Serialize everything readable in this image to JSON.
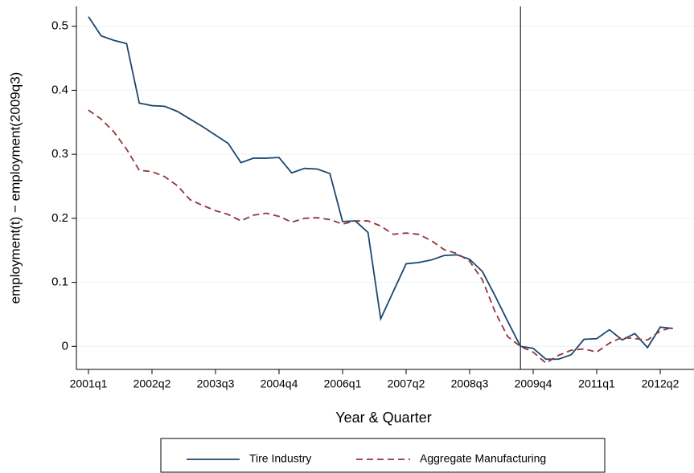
{
  "chart_data": {
    "type": "line",
    "x_label": "Year & Quarter",
    "y_label": "employment(t) − employment(2009q3)",
    "categories": [
      "2001q1",
      null,
      null,
      null,
      null,
      "2002q2",
      null,
      null,
      null,
      null,
      "2003q3",
      null,
      null,
      null,
      null,
      "2004q4",
      null,
      null,
      null,
      null,
      "2006q1",
      null,
      null,
      null,
      null,
      "2007q2",
      null,
      null,
      null,
      null,
      "2008q3",
      null,
      null,
      null,
      null,
      "2009q4",
      null,
      null,
      null,
      null,
      "2011q1",
      null,
      null,
      null,
      null,
      "2012q2",
      null
    ],
    "series": [
      {
        "name": "Tire Industry",
        "color": "#1a476f",
        "dash": "solid",
        "values": [
          0.515,
          0.485,
          0.478,
          0.473,
          0.38,
          0.376,
          0.375,
          0.367,
          0.355,
          0.343,
          0.33,
          0.317,
          0.287,
          0.294,
          0.294,
          0.295,
          0.271,
          0.278,
          0.277,
          0.27,
          0.195,
          0.196,
          0.178,
          0.043,
          0.086,
          0.129,
          0.131,
          0.135,
          0.142,
          0.143,
          0.136,
          0.117,
          0.079,
          0.039,
          0.0,
          -0.003,
          -0.02,
          -0.02,
          -0.013,
          0.011,
          0.012,
          0.026,
          0.01,
          0.02,
          -0.002,
          0.03,
          0.028
        ]
      },
      {
        "name": "Aggregate Manufacturing",
        "color": "#90353b",
        "dash": "dashed",
        "values": [
          0.369,
          0.355,
          0.335,
          0.308,
          0.275,
          0.273,
          0.265,
          0.251,
          0.229,
          0.22,
          0.212,
          0.206,
          0.196,
          0.205,
          0.208,
          0.203,
          0.194,
          0.2,
          0.201,
          0.198,
          0.191,
          0.196,
          0.196,
          0.188,
          0.175,
          0.177,
          0.175,
          0.165,
          0.151,
          0.145,
          0.133,
          0.104,
          0.054,
          0.015,
          0.0,
          -0.009,
          -0.026,
          -0.014,
          -0.006,
          -0.004,
          -0.009,
          0.005,
          0.014,
          0.012,
          0.01,
          0.024,
          0.03
        ]
      }
    ],
    "reference_line_index": 34,
    "ylim": [
      -0.036,
      0.531
    ],
    "yticks": [
      0,
      0.1,
      0.2,
      0.3,
      0.4,
      0.5
    ],
    "grid": true,
    "legend": "bottom"
  }
}
